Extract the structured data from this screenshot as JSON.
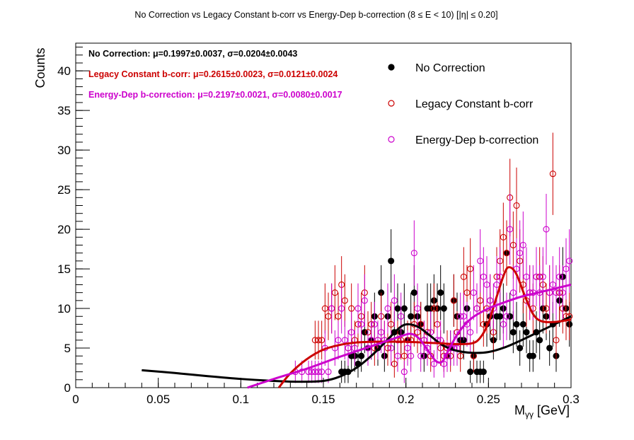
{
  "title": "No Correction vs Legacy Constant b-corr vs Energy-Dep b-correction   (8 ≤ E < 10)   [|η| ≤ 0.20]",
  "stats": [
    {
      "text": "No Correction: μ=0.1997±0.0037, σ=0.0204±0.0043",
      "color": "#000000"
    },
    {
      "text": "Legacy Constant b-corr: μ=0.2615±0.0023, σ=0.0121±0.0024",
      "color": "#cc0000"
    },
    {
      "text": "Energy-Dep b-correction: μ=0.2197±0.0021, σ=0.0080±0.0017",
      "color": "#cc00cc"
    }
  ],
  "legend": [
    {
      "label": "No Correction",
      "color": "#000000",
      "marker": "filled-circle"
    },
    {
      "label": "Legacy Constant b-corr",
      "color": "#cc0000",
      "marker": "open-circle"
    },
    {
      "label": "Energy-Dep b-correction",
      "color": "#cc00cc",
      "marker": "open-circle"
    }
  ],
  "chart_data": {
    "type": "scatter",
    "title": "No Correction vs Legacy Constant b-corr vs Energy-Dep b-correction   (8 ≤ E < 10)   [|η| ≤ 0.20]",
    "xlabel": "Mγγ [GeV]",
    "ylabel": "Counts",
    "xlim": [
      0,
      0.3
    ],
    "ylim": [
      0,
      43.5
    ],
    "xticks": [
      "0",
      "0.05",
      "0.1",
      "0.15",
      "0.2",
      "0.25",
      "0.3"
    ],
    "yticks": [
      "0",
      "5",
      "10",
      "15",
      "20",
      "25",
      "30",
      "35",
      "40"
    ],
    "grid": false,
    "legend_position": "top-right",
    "series": [
      {
        "name": "No Correction",
        "color": "#000000",
        "marker": "filled-circle",
        "points": [
          [
            0.161,
            2
          ],
          [
            0.163,
            2
          ],
          [
            0.165,
            2
          ],
          [
            0.167,
            4
          ],
          [
            0.169,
            4
          ],
          [
            0.171,
            3
          ],
          [
            0.173,
            4
          ],
          [
            0.175,
            7
          ],
          [
            0.177,
            5
          ],
          [
            0.179,
            6
          ],
          [
            0.181,
            9
          ],
          [
            0.183,
            5
          ],
          [
            0.185,
            12
          ],
          [
            0.187,
            4
          ],
          [
            0.189,
            9
          ],
          [
            0.191,
            16
          ],
          [
            0.193,
            7
          ],
          [
            0.195,
            10
          ],
          [
            0.197,
            7
          ],
          [
            0.199,
            10
          ],
          [
            0.201,
            6
          ],
          [
            0.203,
            9
          ],
          [
            0.205,
            12
          ],
          [
            0.207,
            9
          ],
          [
            0.209,
            8
          ],
          [
            0.211,
            4
          ],
          [
            0.213,
            10
          ],
          [
            0.215,
            10
          ],
          [
            0.217,
            11
          ],
          [
            0.219,
            10
          ],
          [
            0.221,
            12
          ],
          [
            0.223,
            10
          ],
          [
            0.225,
            4
          ],
          [
            0.227,
            5
          ],
          [
            0.229,
            11
          ],
          [
            0.231,
            9
          ],
          [
            0.233,
            6
          ],
          [
            0.235,
            6
          ],
          [
            0.237,
            10
          ],
          [
            0.239,
            2
          ],
          [
            0.241,
            4
          ],
          [
            0.243,
            2
          ],
          [
            0.245,
            2
          ],
          [
            0.247,
            2
          ],
          [
            0.249,
            8
          ],
          [
            0.251,
            9
          ],
          [
            0.253,
            6
          ],
          [
            0.255,
            9
          ],
          [
            0.257,
            9
          ],
          [
            0.259,
            10
          ],
          [
            0.261,
            17
          ],
          [
            0.263,
            9
          ],
          [
            0.265,
            7
          ],
          [
            0.267,
            8
          ],
          [
            0.269,
            5
          ],
          [
            0.271,
            8
          ],
          [
            0.273,
            7
          ],
          [
            0.275,
            4
          ],
          [
            0.277,
            4
          ],
          [
            0.279,
            7
          ],
          [
            0.281,
            6
          ],
          [
            0.283,
            10
          ],
          [
            0.285,
            9
          ],
          [
            0.287,
            5
          ],
          [
            0.289,
            8
          ],
          [
            0.291,
            4
          ],
          [
            0.293,
            11
          ],
          [
            0.295,
            14
          ],
          [
            0.297,
            10
          ],
          [
            0.299,
            8
          ]
        ],
        "fit": [
          [
            0.04,
            2.2
          ],
          [
            0.06,
            1.85
          ],
          [
            0.08,
            1.45
          ],
          [
            0.1,
            1.1
          ],
          [
            0.12,
            0.85
          ],
          [
            0.135,
            0.75
          ],
          [
            0.15,
            0.85
          ],
          [
            0.16,
            1.4
          ],
          [
            0.17,
            2.5
          ],
          [
            0.18,
            4.2
          ],
          [
            0.19,
            6.3
          ],
          [
            0.197,
            7.7
          ],
          [
            0.202,
            8.0
          ],
          [
            0.208,
            7.6
          ],
          [
            0.215,
            6.5
          ],
          [
            0.222,
            5.4
          ],
          [
            0.23,
            4.7
          ],
          [
            0.24,
            4.4
          ],
          [
            0.25,
            4.5
          ],
          [
            0.26,
            5.1
          ],
          [
            0.27,
            6.0
          ],
          [
            0.28,
            7.0
          ],
          [
            0.29,
            8.0
          ],
          [
            0.3,
            9.0
          ]
        ]
      },
      {
        "name": "Legacy Constant b-corr",
        "color": "#cc0000",
        "marker": "open-circle",
        "points": [
          [
            0.145,
            6
          ],
          [
            0.147,
            6
          ],
          [
            0.149,
            6
          ],
          [
            0.151,
            10
          ],
          [
            0.153,
            9
          ],
          [
            0.155,
            10
          ],
          [
            0.157,
            12
          ],
          [
            0.159,
            9
          ],
          [
            0.161,
            13
          ],
          [
            0.163,
            11
          ],
          [
            0.165,
            5
          ],
          [
            0.167,
            10
          ],
          [
            0.169,
            6
          ],
          [
            0.171,
            8
          ],
          [
            0.173,
            9
          ],
          [
            0.175,
            12
          ],
          [
            0.177,
            7
          ],
          [
            0.179,
            8
          ],
          [
            0.181,
            5
          ],
          [
            0.183,
            6
          ],
          [
            0.185,
            9
          ],
          [
            0.187,
            6
          ],
          [
            0.189,
            5
          ],
          [
            0.191,
            8
          ],
          [
            0.193,
            3
          ],
          [
            0.195,
            6
          ],
          [
            0.197,
            6
          ],
          [
            0.199,
            4
          ],
          [
            0.201,
            6
          ],
          [
            0.203,
            6
          ],
          [
            0.205,
            8
          ],
          [
            0.207,
            7
          ],
          [
            0.209,
            8
          ],
          [
            0.211,
            6
          ],
          [
            0.213,
            7
          ],
          [
            0.215,
            4
          ],
          [
            0.217,
            10
          ],
          [
            0.219,
            8
          ],
          [
            0.221,
            5
          ],
          [
            0.223,
            4
          ],
          [
            0.225,
            5
          ],
          [
            0.227,
            4
          ],
          [
            0.229,
            11
          ],
          [
            0.231,
            7
          ],
          [
            0.233,
            4
          ],
          [
            0.235,
            14
          ],
          [
            0.237,
            12
          ],
          [
            0.239,
            15
          ],
          [
            0.241,
            4
          ],
          [
            0.243,
            10
          ],
          [
            0.245,
            11
          ],
          [
            0.247,
            8
          ],
          [
            0.249,
            10
          ],
          [
            0.251,
            11
          ],
          [
            0.253,
            7
          ],
          [
            0.255,
            14
          ],
          [
            0.257,
            16
          ],
          [
            0.259,
            19
          ],
          [
            0.261,
            17
          ],
          [
            0.263,
            24
          ],
          [
            0.265,
            18
          ],
          [
            0.267,
            23
          ],
          [
            0.269,
            16
          ],
          [
            0.271,
            13
          ],
          [
            0.273,
            11
          ],
          [
            0.275,
            12
          ],
          [
            0.277,
            10
          ],
          [
            0.279,
            14
          ],
          [
            0.281,
            14
          ],
          [
            0.283,
            13
          ],
          [
            0.285,
            10
          ],
          [
            0.287,
            12
          ],
          [
            0.289,
            27
          ],
          [
            0.291,
            6
          ],
          [
            0.293,
            12
          ],
          [
            0.295,
            10
          ],
          [
            0.297,
            9
          ],
          [
            0.299,
            9
          ]
        ],
        "fit": [
          [
            0.123,
            0
          ],
          [
            0.13,
            1.8
          ],
          [
            0.14,
            3.6
          ],
          [
            0.15,
            4.8
          ],
          [
            0.16,
            5.4
          ],
          [
            0.17,
            5.7
          ],
          [
            0.18,
            5.8
          ],
          [
            0.19,
            5.8
          ],
          [
            0.2,
            5.8
          ],
          [
            0.21,
            5.7
          ],
          [
            0.22,
            5.6
          ],
          [
            0.23,
            5.5
          ],
          [
            0.24,
            5.6
          ],
          [
            0.245,
            6.3
          ],
          [
            0.25,
            8.2
          ],
          [
            0.255,
            11.5
          ],
          [
            0.26,
            14.6
          ],
          [
            0.263,
            15.2
          ],
          [
            0.267,
            14.3
          ],
          [
            0.272,
            11.6
          ],
          [
            0.277,
            9.3
          ],
          [
            0.282,
            8.4
          ],
          [
            0.29,
            8.3
          ],
          [
            0.3,
            8.6
          ]
        ]
      },
      {
        "name": "Energy-Dep b-correction",
        "color": "#cc00cc",
        "marker": "open-circle",
        "points": [
          [
            0.133,
            2
          ],
          [
            0.137,
            2
          ],
          [
            0.141,
            2
          ],
          [
            0.143,
            2
          ],
          [
            0.145,
            2
          ],
          [
            0.147,
            2
          ],
          [
            0.149,
            2
          ],
          [
            0.151,
            5
          ],
          [
            0.153,
            2
          ],
          [
            0.155,
            10
          ],
          [
            0.157,
            5
          ],
          [
            0.159,
            6
          ],
          [
            0.161,
            10
          ],
          [
            0.163,
            6
          ],
          [
            0.165,
            5
          ],
          [
            0.167,
            7
          ],
          [
            0.169,
            5
          ],
          [
            0.171,
            10
          ],
          [
            0.173,
            8
          ],
          [
            0.175,
            11
          ],
          [
            0.177,
            5
          ],
          [
            0.179,
            6
          ],
          [
            0.181,
            8
          ],
          [
            0.183,
            6
          ],
          [
            0.185,
            7
          ],
          [
            0.187,
            6
          ],
          [
            0.189,
            10
          ],
          [
            0.191,
            5
          ],
          [
            0.193,
            11
          ],
          [
            0.195,
            4
          ],
          [
            0.197,
            9
          ],
          [
            0.199,
            2
          ],
          [
            0.201,
            5
          ],
          [
            0.203,
            4
          ],
          [
            0.205,
            17
          ],
          [
            0.207,
            10
          ],
          [
            0.209,
            4
          ],
          [
            0.211,
            6
          ],
          [
            0.213,
            5
          ],
          [
            0.215,
            7
          ],
          [
            0.217,
            3
          ],
          [
            0.219,
            6
          ],
          [
            0.221,
            6
          ],
          [
            0.223,
            3
          ],
          [
            0.225,
            4
          ],
          [
            0.227,
            5
          ],
          [
            0.229,
            5
          ],
          [
            0.231,
            5
          ],
          [
            0.233,
            9
          ],
          [
            0.235,
            9
          ],
          [
            0.237,
            8
          ],
          [
            0.239,
            7
          ],
          [
            0.241,
            12
          ],
          [
            0.243,
            10
          ],
          [
            0.245,
            16
          ],
          [
            0.247,
            14
          ],
          [
            0.249,
            13
          ],
          [
            0.251,
            11
          ],
          [
            0.253,
            10
          ],
          [
            0.255,
            13
          ],
          [
            0.257,
            14
          ],
          [
            0.259,
            8
          ],
          [
            0.261,
            9
          ],
          [
            0.263,
            20
          ],
          [
            0.265,
            12
          ],
          [
            0.267,
            15
          ],
          [
            0.269,
            17
          ],
          [
            0.271,
            18
          ],
          [
            0.273,
            14
          ],
          [
            0.275,
            12
          ],
          [
            0.277,
            12
          ],
          [
            0.279,
            14
          ],
          [
            0.281,
            12
          ],
          [
            0.283,
            14
          ],
          [
            0.285,
            20
          ],
          [
            0.287,
            12
          ],
          [
            0.289,
            13
          ],
          [
            0.291,
            12
          ],
          [
            0.293,
            14
          ],
          [
            0.295,
            12
          ],
          [
            0.297,
            15
          ],
          [
            0.299,
            16
          ]
        ],
        "fit": [
          [
            0.104,
            0
          ],
          [
            0.12,
            1.1
          ],
          [
            0.14,
            2.4
          ],
          [
            0.16,
            3.9
          ],
          [
            0.18,
            5.3
          ],
          [
            0.19,
            6.0
          ],
          [
            0.197,
            6.5
          ],
          [
            0.203,
            6.8
          ],
          [
            0.208,
            6.2
          ],
          [
            0.213,
            4.8
          ],
          [
            0.218,
            3.4
          ],
          [
            0.222,
            3.3
          ],
          [
            0.226,
            4.8
          ],
          [
            0.232,
            7.0
          ],
          [
            0.24,
            8.8
          ],
          [
            0.25,
            10.0
          ],
          [
            0.26,
            10.8
          ],
          [
            0.27,
            11.5
          ],
          [
            0.28,
            12.0
          ],
          [
            0.29,
            12.5
          ],
          [
            0.3,
            13.0
          ]
        ]
      }
    ]
  }
}
